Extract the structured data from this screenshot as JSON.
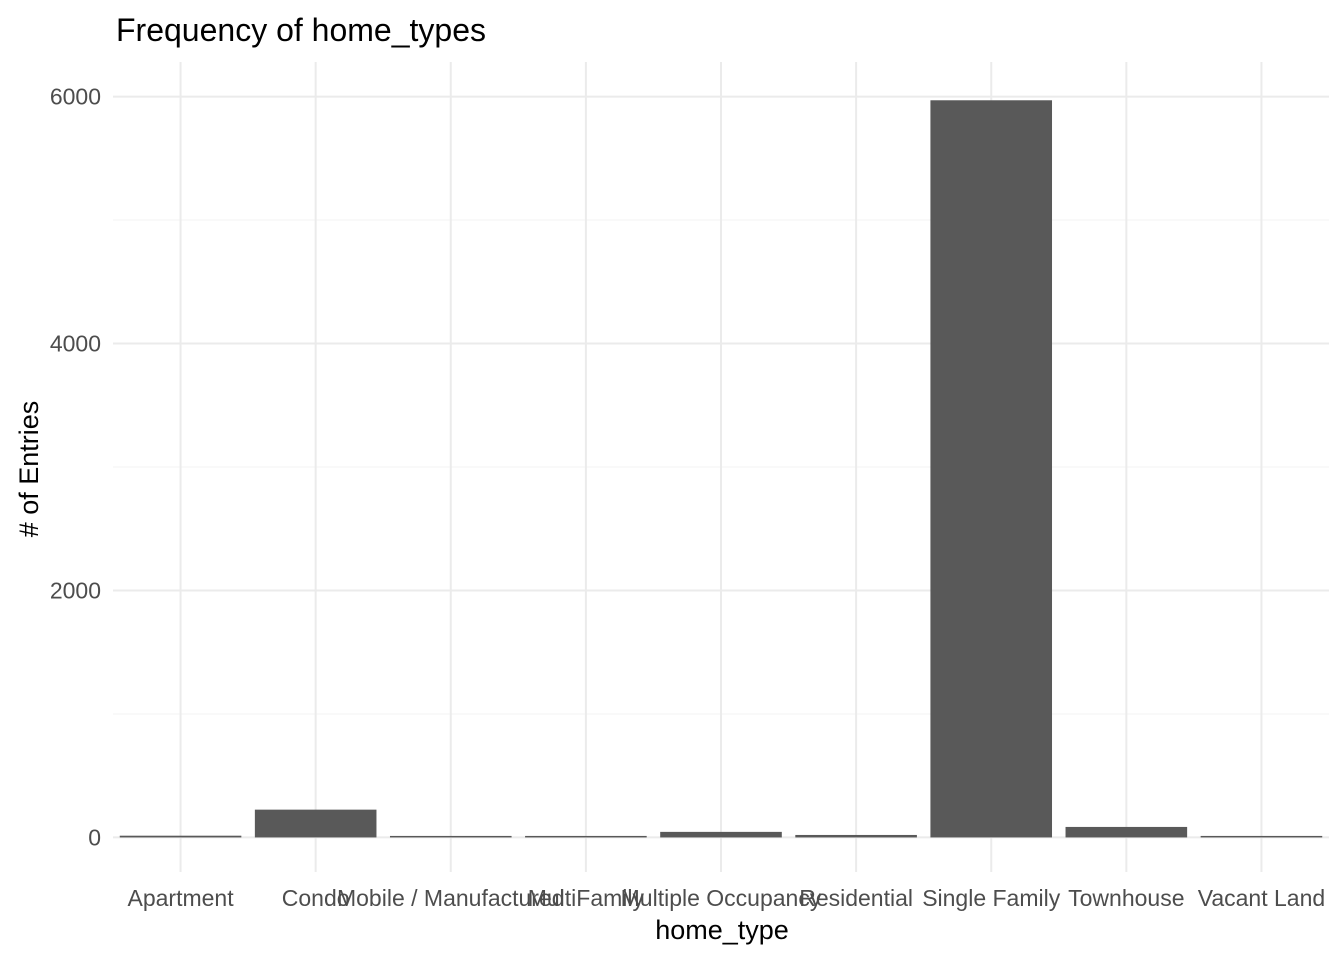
{
  "chart_data": {
    "type": "bar",
    "title": "Frequency of home_types",
    "xlabel": "home_type",
    "ylabel": "# of Entries",
    "categories": [
      "Apartment",
      "Condo",
      "Mobile / Manufactured",
      "MultiFamily",
      "Multiple Occupancy",
      "Residential",
      "Single Family",
      "Townhouse",
      "Vacant Land"
    ],
    "values": [
      14,
      225,
      4,
      4,
      45,
      20,
      5970,
      85,
      3
    ],
    "ylim": [
      -280,
      6280
    ],
    "yticks": [
      0,
      2000,
      4000,
      6000
    ],
    "ytick_labels": [
      "0",
      "2000",
      "4000",
      "6000"
    ],
    "grid": true,
    "bar_color": "#595959"
  }
}
